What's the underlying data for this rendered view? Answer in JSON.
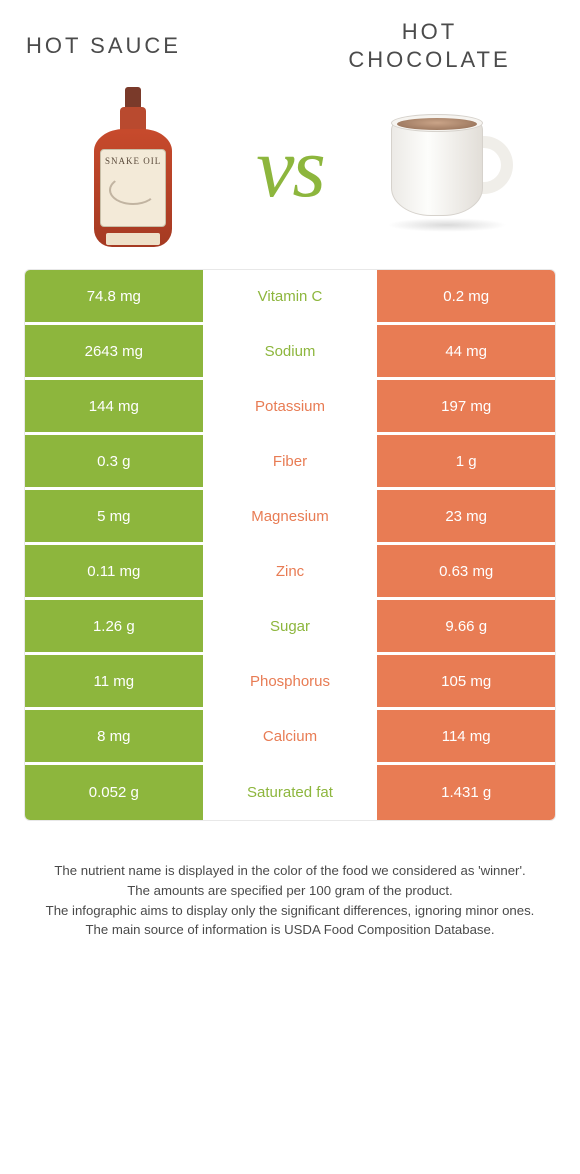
{
  "header": {
    "left_title": "HOT SAUCE",
    "right_title_line1": "HOT",
    "right_title_line2": "CHOCOLATE",
    "vs_label": "vs"
  },
  "colors": {
    "left_cell": "#8db63d",
    "right_cell": "#e87c54",
    "mid_bg": "#ffffff",
    "vs_color": "#8db63d",
    "left_text": "#ffffff",
    "right_text": "#ffffff",
    "mid_text_left_winner": "#8db63d",
    "mid_text_right_winner": "#e87c54"
  },
  "rows": [
    {
      "left": "74.8 mg",
      "label": "Vitamin C",
      "right": "0.2 mg",
      "winner": "left"
    },
    {
      "left": "2643 mg",
      "label": "Sodium",
      "right": "44 mg",
      "winner": "left"
    },
    {
      "left": "144 mg",
      "label": "Potassium",
      "right": "197 mg",
      "winner": "right"
    },
    {
      "left": "0.3 g",
      "label": "Fiber",
      "right": "1 g",
      "winner": "right"
    },
    {
      "left": "5 mg",
      "label": "Magnesium",
      "right": "23 mg",
      "winner": "right"
    },
    {
      "left": "0.11 mg",
      "label": "Zinc",
      "right": "0.63 mg",
      "winner": "right"
    },
    {
      "left": "1.26 g",
      "label": "Sugar",
      "right": "9.66 g",
      "winner": "left"
    },
    {
      "left": "11 mg",
      "label": "Phosphorus",
      "right": "105 mg",
      "winner": "right"
    },
    {
      "left": "8 mg",
      "label": "Calcium",
      "right": "114 mg",
      "winner": "right"
    },
    {
      "left": "0.052 g",
      "label": "Saturated fat",
      "right": "1.431 g",
      "winner": "left"
    }
  ],
  "footnotes": [
    "The nutrient name is displayed in the color of the food we considered as 'winner'.",
    "The amounts are specified per 100 gram of the product.",
    "The infographic aims to display only the significant differences, ignoring minor ones.",
    "The main source of information is USDA Food Composition Database."
  ],
  "product_labels": {
    "bottle_text": "SNAKE OIL"
  },
  "typography": {
    "title_fontsize": 22,
    "vs_fontsize": 86,
    "cell_fontsize": 15,
    "footnote_fontsize": 13
  }
}
